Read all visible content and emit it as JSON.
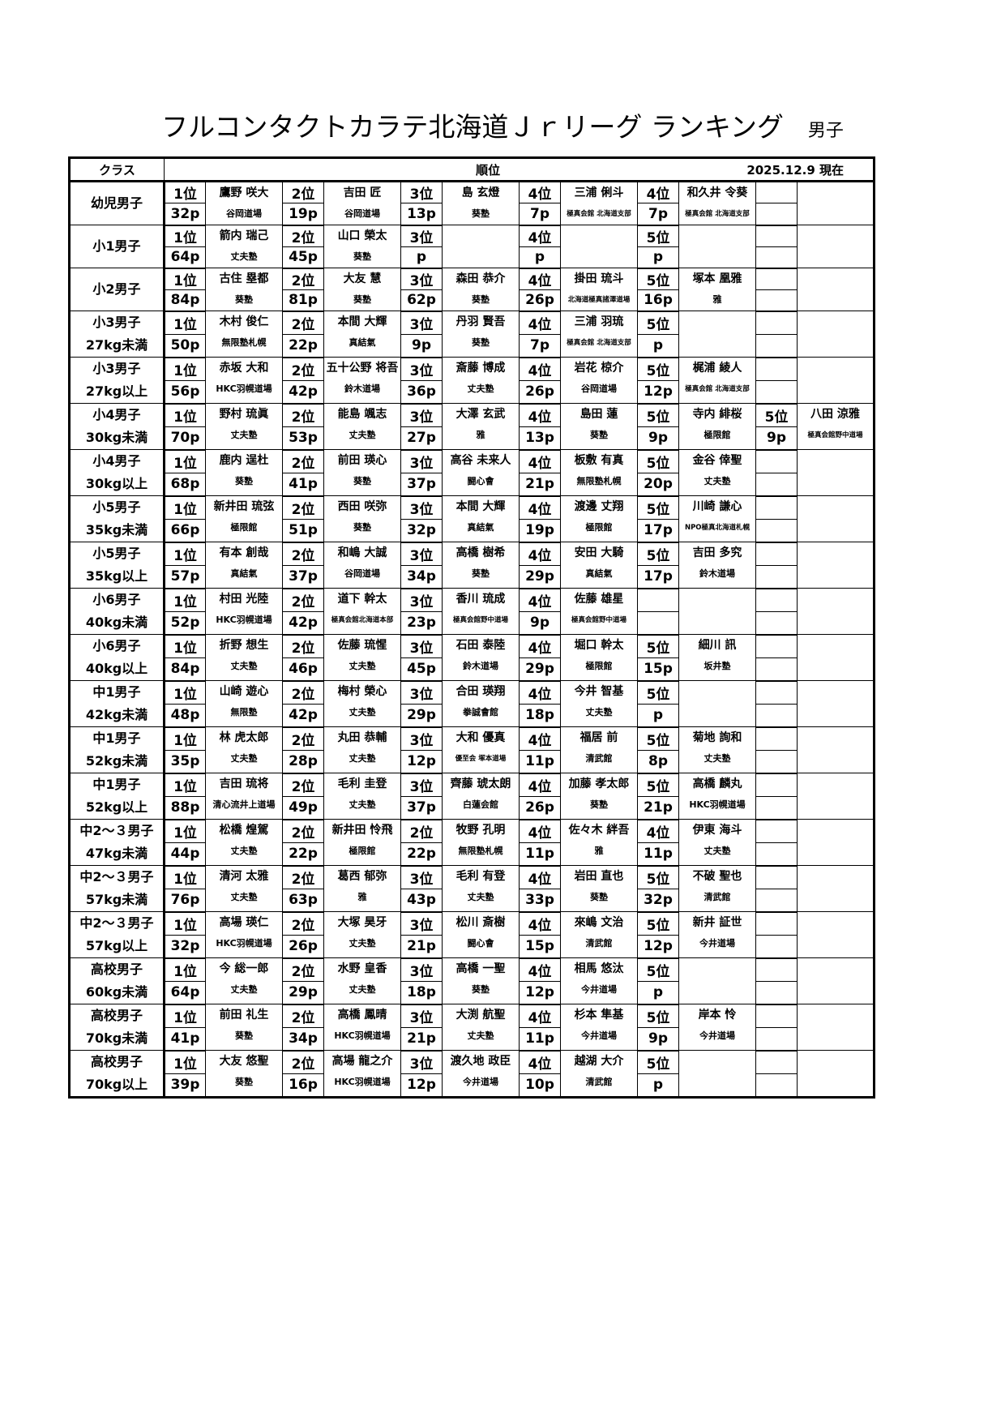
{
  "title": "フルコンタクトカラテ北海道Ｊｒリーグ ランキング",
  "subtitle": "男子",
  "header": {
    "class": "クラス",
    "rank": "順位",
    "date": "2025.12.9 現在"
  },
  "rows": [
    {
      "c1": "幼児男子",
      "c2": "",
      "e": [
        [
          "1位",
          "鷹野 咲大",
          "32p",
          "谷岡道場"
        ],
        [
          "2位",
          "吉田 匠",
          "19p",
          "谷岡道場"
        ],
        [
          "3位",
          "島 玄燈",
          "13p",
          "葵塾"
        ],
        [
          "4位",
          "三浦 俐斗",
          "7p",
          "極真会館 北海道支部"
        ],
        [
          "4位",
          "和久井 令葵",
          "7p",
          "極真会館 北海道支部"
        ],
        [
          "",
          "",
          "",
          ""
        ]
      ]
    },
    {
      "c1": "小1男子",
      "c2": "",
      "e": [
        [
          "1位",
          "箭内 瑞己",
          "64p",
          "丈夫塾"
        ],
        [
          "2位",
          "山口 榮太",
          "45p",
          "葵塾"
        ],
        [
          "3位",
          "",
          "p",
          ""
        ],
        [
          "4位",
          "",
          "p",
          ""
        ],
        [
          "5位",
          "",
          "p",
          ""
        ],
        [
          "",
          "",
          "",
          ""
        ]
      ]
    },
    {
      "c1": "小2男子",
      "c2": "",
      "e": [
        [
          "1位",
          "古住 塁都",
          "84p",
          "葵塾"
        ],
        [
          "2位",
          "大友 慧",
          "81p",
          "葵塾"
        ],
        [
          "3位",
          "森田 恭介",
          "62p",
          "葵塾"
        ],
        [
          "4位",
          "掛田 琉斗",
          "26p",
          "北海道極真諸澤道場"
        ],
        [
          "5位",
          "塚本 凰雅",
          "16p",
          "雅"
        ],
        [
          "",
          "",
          "",
          ""
        ]
      ]
    },
    {
      "c1": "小3男子",
      "c2": "27kg未満",
      "e": [
        [
          "1位",
          "木村 俊仁",
          "50p",
          "無限塾札幌"
        ],
        [
          "2位",
          "本間 大輝",
          "22p",
          "真結氣"
        ],
        [
          "3位",
          "丹羽 賢吾",
          "9p",
          "葵塾"
        ],
        [
          "4位",
          "三浦 羽琉",
          "7p",
          "極真会館 北海道支部"
        ],
        [
          "5位",
          "",
          "p",
          ""
        ],
        [
          "",
          "",
          "",
          ""
        ]
      ]
    },
    {
      "c1": "小3男子",
      "c2": "27kg以上",
      "e": [
        [
          "1位",
          "赤坂 大和",
          "56p",
          "HKC羽幌道場"
        ],
        [
          "2位",
          "五十公野 将吾",
          "42p",
          "鈴木道場"
        ],
        [
          "3位",
          "斎藤 博成",
          "36p",
          "丈夫塾"
        ],
        [
          "4位",
          "岩花 椋介",
          "26p",
          "谷岡道場"
        ],
        [
          "5位",
          "梶浦 綾人",
          "12p",
          "極真会館 北海道支部"
        ],
        [
          "",
          "",
          "",
          ""
        ]
      ]
    },
    {
      "c1": "小4男子",
      "c2": "30kg未満",
      "e": [
        [
          "1位",
          "野村 琉眞",
          "70p",
          "丈夫塾"
        ],
        [
          "2位",
          "能島 颯志",
          "53p",
          "丈夫塾"
        ],
        [
          "3位",
          "大澤 玄武",
          "27p",
          "雅"
        ],
        [
          "4位",
          "島田 蓮",
          "13p",
          "葵塾"
        ],
        [
          "5位",
          "寺内 緋桜",
          "9p",
          "極限館"
        ],
        [
          "5位",
          "八田 涼雅",
          "9p",
          "極真会館野中道場"
        ]
      ]
    },
    {
      "c1": "小4男子",
      "c2": "30kg以上",
      "e": [
        [
          "1位",
          "鹿内 逞杜",
          "68p",
          "葵塾"
        ],
        [
          "2位",
          "前田 瑛心",
          "41p",
          "葵塾"
        ],
        [
          "3位",
          "高谷 未来人",
          "37p",
          "闘心會"
        ],
        [
          "4位",
          "板敷 有真",
          "21p",
          "無限塾札幌"
        ],
        [
          "5位",
          "金谷 倖聖",
          "20p",
          "丈夫塾"
        ],
        [
          "",
          "",
          "",
          ""
        ]
      ]
    },
    {
      "c1": "小5男子",
      "c2": "35kg未満",
      "e": [
        [
          "1位",
          "新井田 琉弦",
          "66p",
          "極限館"
        ],
        [
          "2位",
          "西田 咲弥",
          "51p",
          "葵塾"
        ],
        [
          "3位",
          "本間 大輝",
          "32p",
          "真結氣"
        ],
        [
          "4位",
          "渡邊 丈翔",
          "19p",
          "極限館"
        ],
        [
          "5位",
          "川崎 謙心",
          "17p",
          "NPO極真北海道札幌"
        ],
        [
          "",
          "",
          "",
          ""
        ]
      ]
    },
    {
      "c1": "小5男子",
      "c2": "35kg以上",
      "e": [
        [
          "1位",
          "有本 創哉",
          "57p",
          "真結氣"
        ],
        [
          "2位",
          "和嶋 大誠",
          "37p",
          "谷岡道場"
        ],
        [
          "3位",
          "高橋 樹希",
          "34p",
          "葵塾"
        ],
        [
          "4位",
          "安田 大騎",
          "29p",
          "真結氣"
        ],
        [
          "5位",
          "吉田 多究",
          "17p",
          "鈴木道場"
        ],
        [
          "",
          "",
          "",
          ""
        ]
      ]
    },
    {
      "c1": "小6男子",
      "c2": "40kg未満",
      "e": [
        [
          "1位",
          "村田 光陸",
          "52p",
          "HKC羽幌道場"
        ],
        [
          "2位",
          "道下 幹太",
          "42p",
          "極真会館北海道本部"
        ],
        [
          "3位",
          "香川 琉成",
          "23p",
          "極真会館野中道場"
        ],
        [
          "4位",
          "佐藤 雄星",
          "9p",
          "極真会館野中道場"
        ],
        [
          "",
          "",
          "",
          ""
        ],
        [
          "",
          "",
          "",
          ""
        ]
      ]
    },
    {
      "c1": "小6男子",
      "c2": "40kg以上",
      "e": [
        [
          "1位",
          "折野 想生",
          "84p",
          "丈夫塾"
        ],
        [
          "2位",
          "佐藤 琉惺",
          "46p",
          "丈夫塾"
        ],
        [
          "3位",
          "石田 泰陸",
          "45p",
          "鈴木道場"
        ],
        [
          "4位",
          "堀口 幹太",
          "29p",
          "極限館"
        ],
        [
          "5位",
          "細川 訊",
          "15p",
          "坂井塾"
        ],
        [
          "",
          "",
          "",
          ""
        ]
      ]
    },
    {
      "c1": "中1男子",
      "c2": "42kg未満",
      "e": [
        [
          "1位",
          "山崎 遊心",
          "48p",
          "無限塾"
        ],
        [
          "2位",
          "梅村 榮心",
          "42p",
          "丈夫塾"
        ],
        [
          "3位",
          "合田 瑛翔",
          "29p",
          "拳誠會館"
        ],
        [
          "4位",
          "今井 智基",
          "18p",
          "丈夫塾"
        ],
        [
          "5位",
          "",
          "p",
          ""
        ],
        [
          "",
          "",
          "",
          ""
        ]
      ]
    },
    {
      "c1": "中1男子",
      "c2": "52kg未満",
      "e": [
        [
          "1位",
          "林 虎太郎",
          "35p",
          "丈夫塾"
        ],
        [
          "2位",
          "丸田 恭輔",
          "28p",
          "丈夫塾"
        ],
        [
          "3位",
          "大和 優真",
          "12p",
          "優至会 塚本道場"
        ],
        [
          "4位",
          "福居 前",
          "11p",
          "清武館"
        ],
        [
          "5位",
          "菊地 詢和",
          "8p",
          "丈夫塾"
        ],
        [
          "",
          "",
          "",
          ""
        ]
      ]
    },
    {
      "c1": "中1男子",
      "c2": "52kg以上",
      "e": [
        [
          "1位",
          "吉田 琉将",
          "88p",
          "清心流井上道場"
        ],
        [
          "2位",
          "毛利 圭登",
          "49p",
          "丈夫塾"
        ],
        [
          "3位",
          "齊藤 琥太朗",
          "37p",
          "白蓮会館"
        ],
        [
          "4位",
          "加藤 孝太郎",
          "26p",
          "葵塾"
        ],
        [
          "5位",
          "高橋 麟丸",
          "21p",
          "HKC羽幌道場"
        ],
        [
          "",
          "",
          "",
          ""
        ]
      ]
    },
    {
      "c1": "中2～３男子",
      "c2": "47kg未満",
      "e": [
        [
          "1位",
          "松橋 煌駕",
          "44p",
          "丈夫塾"
        ],
        [
          "2位",
          "新井田 怜飛",
          "22p",
          "極限館"
        ],
        [
          "2位",
          "牧野 孔明",
          "22p",
          "無限塾札幌"
        ],
        [
          "4位",
          "佐々木 絆吾",
          "11p",
          "雅"
        ],
        [
          "4位",
          "伊東 海斗",
          "11p",
          "丈夫塾"
        ],
        [
          "",
          "",
          "",
          ""
        ]
      ]
    },
    {
      "c1": "中2～３男子",
      "c2": "57kg未満",
      "e": [
        [
          "1位",
          "清河 太雅",
          "76p",
          "丈夫塾"
        ],
        [
          "2位",
          "葛西 郁弥",
          "63p",
          "雅"
        ],
        [
          "3位",
          "毛利 有登",
          "43p",
          "丈夫塾"
        ],
        [
          "4位",
          "岩田 直也",
          "33p",
          "葵塾"
        ],
        [
          "5位",
          "不破 聖也",
          "32p",
          "清武館"
        ],
        [
          "",
          "",
          "",
          ""
        ]
      ]
    },
    {
      "c1": "中2～３男子",
      "c2": "57kg以上",
      "e": [
        [
          "1位",
          "高場 瑛仁",
          "32p",
          "HKC羽幌道場"
        ],
        [
          "2位",
          "大塚 昊牙",
          "26p",
          "丈夫塾"
        ],
        [
          "3位",
          "松川 斎樹",
          "21p",
          "闘心會"
        ],
        [
          "4位",
          "來嶋 文治",
          "15p",
          "清武館"
        ],
        [
          "5位",
          "新井 証世",
          "12p",
          "今井道場"
        ],
        [
          "",
          "",
          "",
          ""
        ]
      ]
    },
    {
      "c1": "高校男子",
      "c2": "60kg未満",
      "e": [
        [
          "1位",
          "今 総一郎",
          "64p",
          "丈夫塾"
        ],
        [
          "2位",
          "水野 皇香",
          "29p",
          "丈夫塾"
        ],
        [
          "3位",
          "高橋 一聖",
          "18p",
          "葵塾"
        ],
        [
          "4位",
          "相馬 悠汰",
          "12p",
          "今井道場"
        ],
        [
          "5位",
          "",
          "p",
          ""
        ],
        [
          "",
          "",
          "",
          ""
        ]
      ]
    },
    {
      "c1": "高校男子",
      "c2": "70kg未満",
      "e": [
        [
          "1位",
          "前田 礼生",
          "41p",
          "葵塾"
        ],
        [
          "2位",
          "高橋 鳳晴",
          "34p",
          "HKC羽幌道場"
        ],
        [
          "3位",
          "大渕 航聖",
          "21p",
          "丈夫塾"
        ],
        [
          "4位",
          "杉本 隼基",
          "11p",
          "今井道場"
        ],
        [
          "5位",
          "岸本 怜",
          "9p",
          "今井道場"
        ],
        [
          "",
          "",
          "",
          ""
        ]
      ]
    },
    {
      "c1": "高校男子",
      "c2": "70kg以上",
      "e": [
        [
          "1位",
          "大友 悠聖",
          "39p",
          "葵塾"
        ],
        [
          "2位",
          "高場 龍之介",
          "16p",
          "HKC羽幌道場"
        ],
        [
          "3位",
          "渡久地 政臣",
          "12p",
          "今井道場"
        ],
        [
          "4位",
          "越湖 大介",
          "10p",
          "清武館"
        ],
        [
          "5位",
          "",
          "p",
          ""
        ],
        [
          "",
          "",
          "",
          ""
        ]
      ]
    }
  ]
}
